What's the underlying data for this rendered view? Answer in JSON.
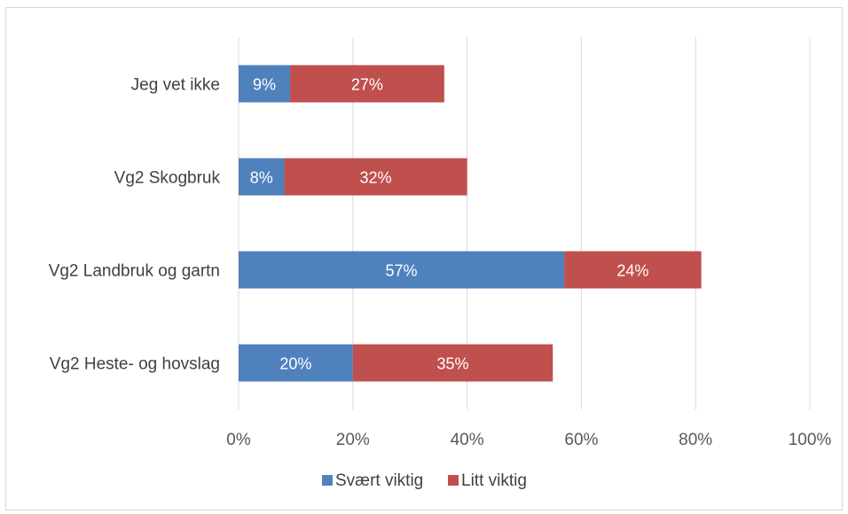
{
  "chart_data": {
    "type": "bar",
    "orientation": "horizontal",
    "stacked": true,
    "categories": [
      "Jeg vet ikke",
      "Vg2 Skogbruk",
      "Vg2 Landbruk og gartn",
      "Vg2 Heste- og hovslag"
    ],
    "series": [
      {
        "name": "Svært viktig",
        "color": "#4f81bd",
        "values": [
          9,
          8,
          57,
          20
        ],
        "labels": [
          "9%",
          "8%",
          "57%",
          "20%"
        ]
      },
      {
        "name": "Litt viktig",
        "color": "#c0504d",
        "values": [
          27,
          32,
          24,
          35
        ],
        "labels": [
          "27%",
          "32%",
          "24%",
          "35%"
        ]
      }
    ],
    "x_ticks": [
      "0%",
      "20%",
      "40%",
      "60%",
      "80%",
      "100%"
    ],
    "xlim": [
      0,
      100
    ],
    "grid": true,
    "legend": "bottom"
  }
}
